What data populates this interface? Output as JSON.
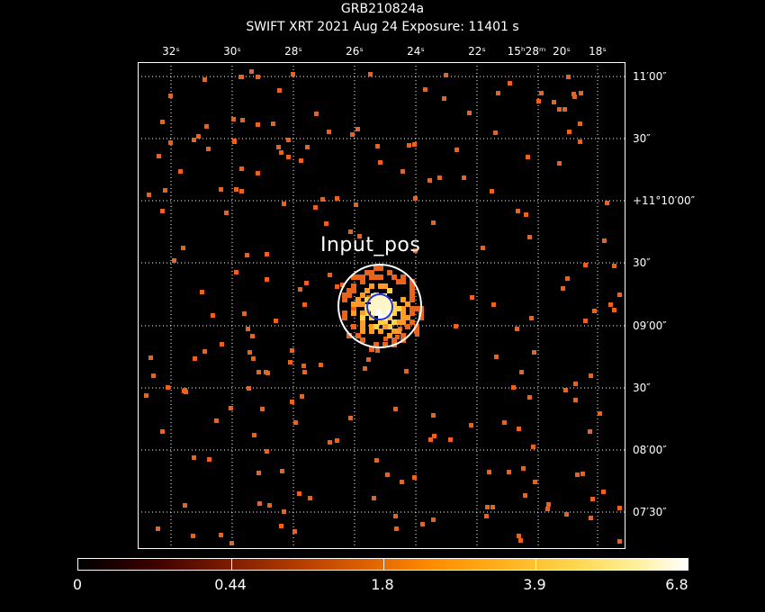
{
  "header": {
    "line1": "GRB210824a",
    "line2": "SWIFT XRT   2021 Aug 24    Exposure: 11401 s"
  },
  "ra_ticks": [
    "32ˢ",
    "30ˢ",
    "28ˢ",
    "26ˢ",
    "24ˢ",
    "22ˢ",
    "15ʰ28ᵐ",
    "20ˢ",
    "18ˢ"
  ],
  "dec_ticks": [
    "11′00″",
    "30″",
    "+11°10′00″",
    "30″",
    "09′00″",
    "30″",
    "08′00″",
    "07′30″"
  ],
  "source_label": "Input_pos",
  "colorbar": {
    "labels": [
      "0",
      "0.44",
      "1.8",
      "3.9",
      "6.8"
    ]
  },
  "colors": {
    "pixel": "#e8641e",
    "pixel_bright": "#ff9c28",
    "circle": "#ffffff",
    "error_circle": "#2233dd"
  }
}
